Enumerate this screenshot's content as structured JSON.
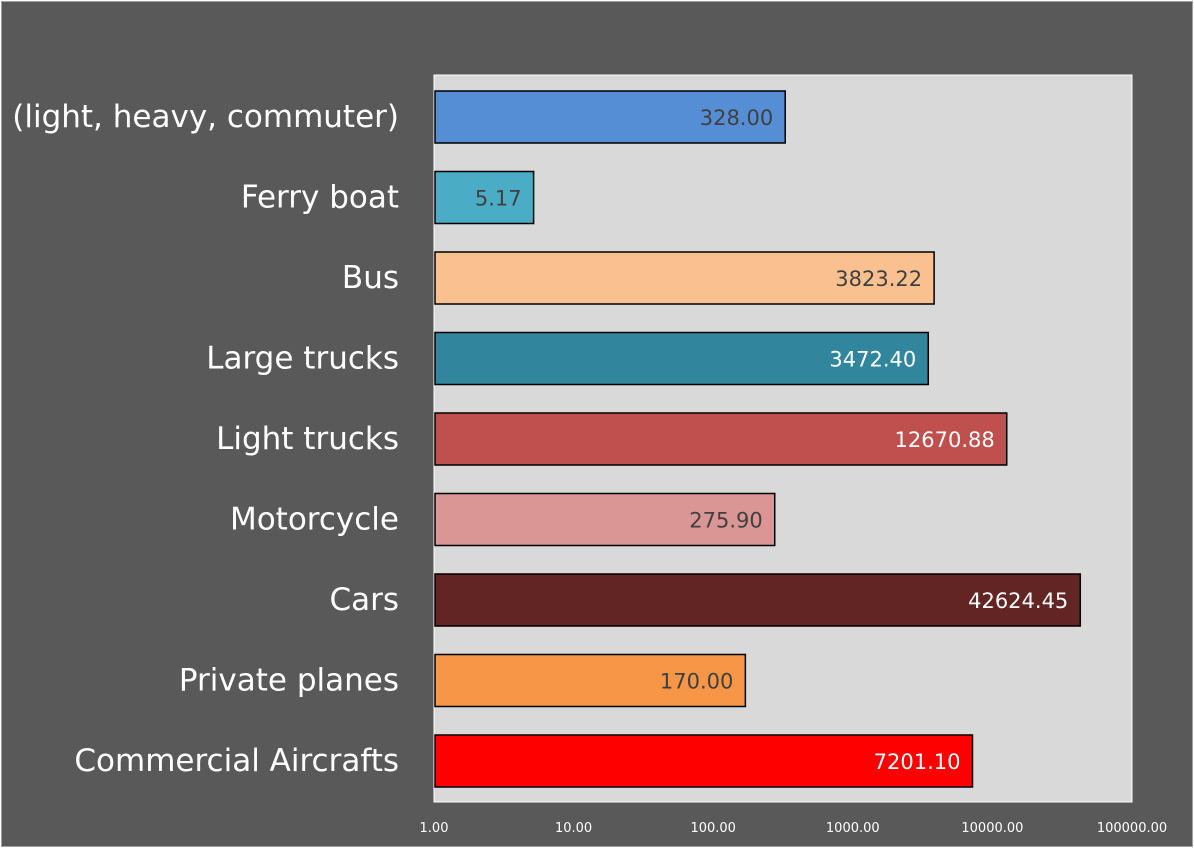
{
  "chart_data": {
    "type": "bar",
    "orientation": "horizontal",
    "x_scale": "log",
    "xlim": [
      1,
      100000
    ],
    "x_ticks": [
      "1.00",
      "10.00",
      "100.00",
      "1000.00",
      "10000.00",
      "100000.00"
    ],
    "grid": false,
    "legend": "none",
    "categories": [
      "Rail (light, heavy, commuter)",
      "Ferry boat",
      "Bus",
      "Large trucks",
      "Light trucks",
      "Motorcycle",
      "Cars",
      "Private planes",
      "Commercial Aircrafts"
    ],
    "values": [
      328.0,
      5.17,
      3823.22,
      3472.4,
      12670.88,
      275.9,
      42624.45,
      170.0,
      7201.1
    ],
    "value_labels": [
      "328.00",
      "5.17",
      "3823.22",
      "3472.40",
      "12670.88",
      "275.90",
      "42624.45",
      "170.00",
      "7201.10"
    ],
    "bar_colors": [
      "#558ed5",
      "#4bacc6",
      "#fac090",
      "#31859c",
      "#c0504d",
      "#d99694",
      "#632523",
      "#f79646",
      "#ff0000"
    ],
    "label_colors": [
      "#404040",
      "#404040",
      "#404040",
      "#ffffff",
      "#ffffff",
      "#404040",
      "#ffffff",
      "#404040",
      "#ffffff"
    ],
    "plot_background": "#d9d9d9",
    "chart_background": "#595959"
  }
}
